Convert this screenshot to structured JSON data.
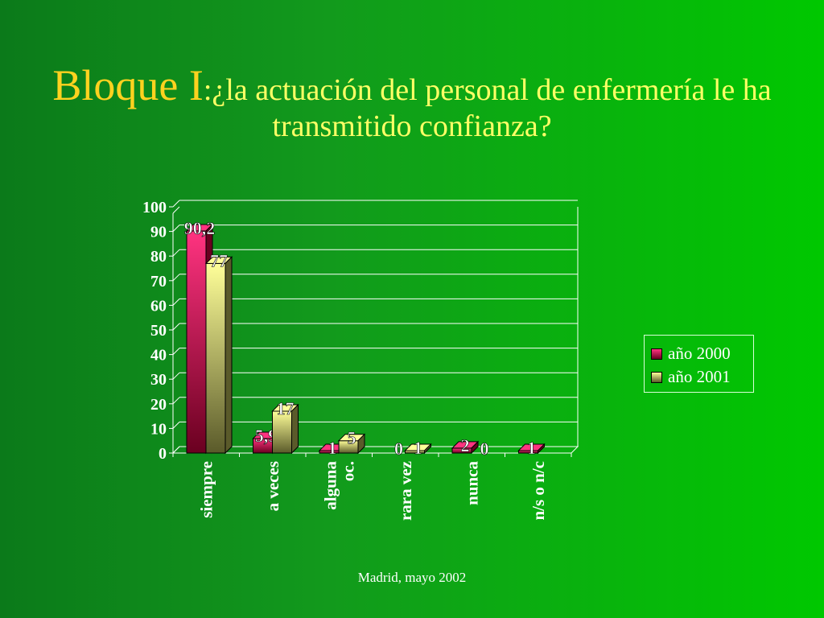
{
  "slide": {
    "title_main": "Bloque I",
    "title_rest": ":¿la actuación del personal de enfermería le ha transmitido confianza?",
    "footer": "Madrid, mayo 2002"
  },
  "colors": {
    "series_2000_top": "#ff3380",
    "series_2000_bottom": "#6a0020",
    "series_2001_top": "#ffff99",
    "series_2001_bottom": "#5a5a2a",
    "label_text": "#ffffff",
    "title_text": "#ffd21f"
  },
  "chart_data": {
    "type": "bar",
    "categories": [
      "siempre",
      "a veces",
      "alguna oc.",
      "rara vez",
      "nunca",
      "n/s o n/c"
    ],
    "category_lines": [
      [
        "siempre"
      ],
      [
        "a veces"
      ],
      [
        "alguna",
        "oc."
      ],
      [
        "rara vez"
      ],
      [
        "nunca"
      ],
      [
        "n/s o n/c"
      ]
    ],
    "series": [
      {
        "name": "año 2000",
        "values": [
          90.2,
          5.9,
          1,
          0,
          2,
          1
        ],
        "labels": [
          "90,2",
          "5,9",
          "1",
          "0",
          "2",
          "1"
        ]
      },
      {
        "name": "año 2001",
        "values": [
          77,
          17,
          5,
          1,
          0,
          0
        ],
        "labels": [
          "77",
          "17",
          "5",
          "1",
          "0",
          ""
        ]
      }
    ],
    "ylim": [
      0,
      100
    ],
    "yticks": [
      0,
      10,
      20,
      30,
      40,
      50,
      60,
      70,
      80,
      90,
      100
    ],
    "grid": true,
    "legend": "right",
    "title": "",
    "xlabel": "",
    "ylabel": ""
  }
}
